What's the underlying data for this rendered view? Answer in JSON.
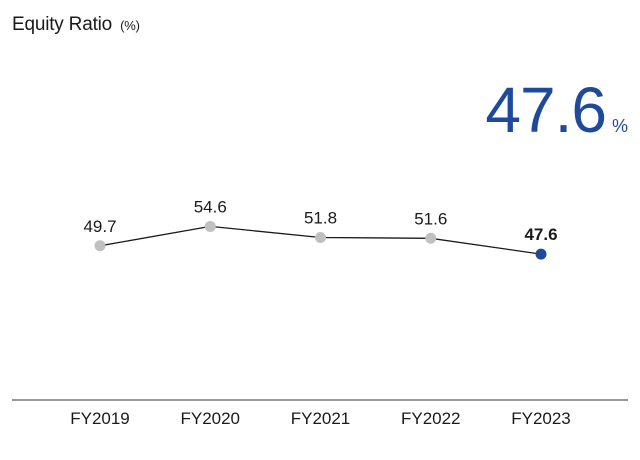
{
  "header": {
    "title": "Equity Ratio",
    "unit": "(%)"
  },
  "highlight": {
    "value": "47.6",
    "unit": "%"
  },
  "colors": {
    "accent": "#1f4a9c",
    "point": "#c0c0c0",
    "line": "#1a1a1a"
  },
  "chart_data": {
    "type": "line",
    "title": "Equity Ratio (%)",
    "categories": [
      "FY2019",
      "FY2020",
      "FY2021",
      "FY2022",
      "FY2023"
    ],
    "series": [
      {
        "values": [
          49.7,
          54.6,
          51.8,
          51.6,
          47.6
        ]
      }
    ],
    "labels": [
      "49.7",
      "54.6",
      "51.8",
      "51.6",
      "47.6"
    ],
    "emphasized_index": 4,
    "xlabel": "",
    "ylabel": "",
    "grid": false
  }
}
